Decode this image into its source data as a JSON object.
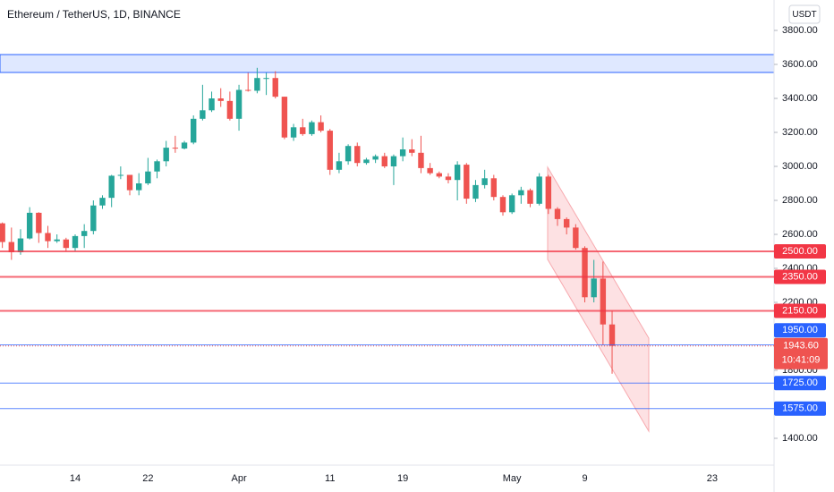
{
  "chart_data": {
    "type": "candlestick",
    "title": "Ethereum / TetherUS, 1D, BINANCE",
    "currency": "USDT",
    "categories": [
      null,
      null,
      null,
      null,
      null,
      null,
      null,
      null,
      "14",
      null,
      null,
      null,
      null,
      null,
      null,
      null,
      "22",
      null,
      null,
      null,
      null,
      null,
      null,
      null,
      null,
      null,
      "Apr",
      null,
      null,
      null,
      null,
      null,
      null,
      null,
      null,
      null,
      "11",
      null,
      null,
      null,
      null,
      null,
      null,
      null,
      "19",
      null,
      null,
      null,
      null,
      null,
      null,
      null,
      null,
      null,
      null,
      null,
      "May",
      null,
      null,
      null,
      null,
      null,
      null,
      null,
      "9",
      null,
      null,
      null,
      null,
      null,
      null,
      null,
      null,
      null,
      null,
      null,
      null,
      null,
      "23",
      null,
      null,
      null,
      null,
      null,
      null
    ],
    "open": [
      2665,
      2555,
      2495,
      2576,
      2727,
      2608,
      2560,
      2570,
      2520,
      2590,
      2620,
      2770,
      2815,
      2945,
      2950,
      2860,
      2900,
      2970,
      3030,
      3110,
      3105,
      3140,
      3280,
      3330,
      3400,
      3385,
      3280,
      3450,
      3445,
      3520,
      3520,
      3410,
      3170,
      3230,
      3190,
      3260,
      3210,
      2980,
      3030,
      3120,
      3020,
      3040,
      3060,
      3000,
      3060,
      3100,
      3080,
      2990,
      2960,
      2940,
      2920,
      3010,
      2810,
      2890,
      2930,
      2820,
      2730,
      2830,
      2860,
      2780,
      2940,
      2750,
      2690,
      2640,
      2520,
      2230,
      2340,
      2070,
      null,
      null,
      null,
      null,
      null,
      null,
      null,
      null,
      null,
      null,
      null,
      null,
      null,
      null,
      null,
      null,
      null
    ],
    "high": [
      2670,
      2640,
      2630,
      2760,
      2730,
      2650,
      2600,
      2580,
      2600,
      2660,
      2800,
      2830,
      2950,
      3000,
      2950,
      2960,
      3050,
      3040,
      3150,
      3180,
      3150,
      3300,
      3480,
      3440,
      3460,
      3440,
      3480,
      3550,
      3580,
      3550,
      3560,
      3410,
      3250,
      3280,
      3270,
      3300,
      3220,
      3080,
      3130,
      3140,
      3050,
      3070,
      3080,
      3070,
      3170,
      3160,
      3180,
      3020,
      2970,
      2960,
      3030,
      3020,
      2920,
      2980,
      2950,
      2830,
      2840,
      2880,
      2870,
      2960,
      2950,
      2760,
      2700,
      2660,
      2530,
      2450,
      2440,
      2150,
      null,
      null,
      null,
      null,
      null,
      null,
      null,
      null,
      null,
      null,
      null,
      null,
      null,
      null,
      null,
      null,
      null
    ],
    "low": [
      2520,
      2450,
      2480,
      2570,
      2550,
      2520,
      2550,
      2500,
      2500,
      2520,
      2600,
      2750,
      2760,
      2925,
      2830,
      2830,
      2890,
      2930,
      3000,
      3080,
      3100,
      3130,
      3270,
      3320,
      3350,
      3270,
      3210,
      3440,
      3430,
      3420,
      3400,
      3160,
      3150,
      3180,
      3180,
      3200,
      2950,
      2960,
      3010,
      3000,
      3010,
      3020,
      2990,
      2890,
      3030,
      3060,
      2960,
      2950,
      2930,
      2900,
      2800,
      2780,
      2790,
      2870,
      2800,
      2710,
      2720,
      2780,
      2760,
      2770,
      2720,
      2650,
      2600,
      2510,
      2200,
      2200,
      1950,
      1780,
      null,
      null,
      null,
      null,
      null,
      null,
      null,
      null,
      null,
      null,
      null,
      null,
      null,
      null,
      null,
      null,
      null
    ],
    "close": [
      2555,
      2495,
      2576,
      2727,
      2608,
      2560,
      2570,
      2520,
      2590,
      2620,
      2770,
      2815,
      2945,
      2950,
      2860,
      2900,
      2970,
      3030,
      3110,
      3105,
      3140,
      3280,
      3330,
      3400,
      3385,
      3280,
      3450,
      3445,
      3520,
      3520,
      3410,
      3170,
      3230,
      3190,
      3260,
      3210,
      2980,
      3030,
      3120,
      3020,
      3040,
      3060,
      3000,
      3060,
      3100,
      3080,
      2990,
      2960,
      2940,
      2920,
      3010,
      2810,
      2890,
      2930,
      2820,
      2730,
      2830,
      2860,
      2780,
      2940,
      2750,
      2690,
      2640,
      2520,
      2230,
      2340,
      2070,
      1943.6,
      null,
      null,
      null,
      null,
      null,
      null,
      null,
      null,
      null,
      null,
      null,
      null,
      null,
      null,
      null,
      null,
      null
    ],
    "up_color": "#26a69a",
    "down_color": "#ef5350",
    "ylim": [
      1242,
      3979
    ],
    "yticks": [
      {
        "value": 3800,
        "label": "3800.00"
      },
      {
        "value": 3600,
        "label": "3600.00"
      },
      {
        "value": 3400,
        "label": "3400.00"
      },
      {
        "value": 3200,
        "label": "3200.00"
      },
      {
        "value": 3000,
        "label": "3000.00"
      },
      {
        "value": 2800,
        "label": "2800.00"
      },
      {
        "value": 2600,
        "label": "2600.00"
      },
      {
        "value": 2400,
        "label": "2400.00"
      },
      {
        "value": 2200,
        "label": "2200.00"
      },
      {
        "value": 1800,
        "label": "1800.00"
      },
      {
        "value": 1400,
        "label": "1400.00"
      }
    ],
    "levels": [
      {
        "value": 2500,
        "label": "2500.00",
        "color": "#f23645"
      },
      {
        "value": 2350,
        "label": "2350.00",
        "color": "#f23645"
      },
      {
        "value": 2150,
        "label": "2150.00",
        "color": "#f23645"
      },
      {
        "value": 1950,
        "label": "1950.00",
        "color": "#2962ff"
      },
      {
        "value": 1725,
        "label": "1725.00",
        "color": "#2962ff"
      },
      {
        "value": 1575,
        "label": "1575.00",
        "color": "#2962ff"
      }
    ],
    "last_price": {
      "value": 1943.6,
      "label": "1943.60"
    },
    "countdown": "10:41:09"
  }
}
